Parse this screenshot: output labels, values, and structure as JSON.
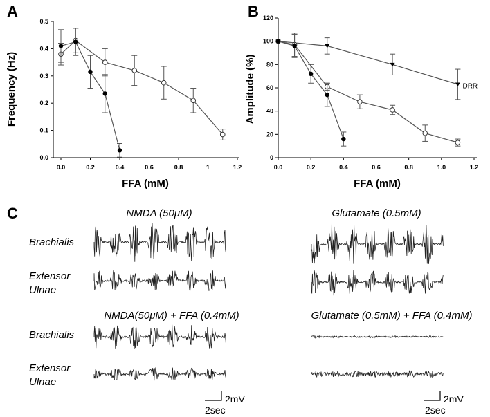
{
  "panel_labels": {
    "a": "A",
    "b": "B",
    "c": "C"
  },
  "chart_data": [
    {
      "panel": "A",
      "type": "line",
      "xlabel": "FFA (mM)",
      "ylabel": "Frequency (Hz)",
      "xlim": [
        0,
        1.2
      ],
      "ylim": [
        0,
        0.5
      ],
      "xticks": [
        0,
        0.2,
        0.4,
        0.6,
        0.8,
        1,
        1.2
      ],
      "xticklabels": [
        "0.0",
        "0.2",
        "0.4",
        "0.6",
        "0.8",
        "1",
        "1.2"
      ],
      "yticks": [
        0,
        0.1,
        0.2,
        0.3,
        0.4,
        0.5
      ],
      "yticklabels": [
        "0.0",
        "0.1",
        "0.2",
        "0.3",
        "0.4",
        "0.5"
      ],
      "series": [
        {
          "name": "open",
          "marker": "open-circle",
          "x": [
            0,
            0.1,
            0.3,
            0.5,
            0.7,
            0.9,
            1.1
          ],
          "y": [
            0.38,
            0.43,
            0.35,
            0.32,
            0.275,
            0.21,
            0.085
          ],
          "err": [
            0.04,
            0.045,
            0.05,
            0.055,
            0.06,
            0.045,
            0.02
          ]
        },
        {
          "name": "filled",
          "marker": "filled-circle",
          "x": [
            0,
            0.1,
            0.2,
            0.3,
            0.4
          ],
          "y": [
            0.41,
            0.425,
            0.315,
            0.235,
            0.027
          ],
          "err": [
            0.06,
            0.05,
            0.06,
            0.07,
            0.025
          ]
        }
      ]
    },
    {
      "panel": "B",
      "type": "line",
      "xlabel": "FFA (mM)",
      "ylabel": "Amplitude (%)",
      "xlim": [
        0,
        1.2
      ],
      "ylim": [
        0,
        120
      ],
      "xticks": [
        0,
        0.2,
        0.4,
        0.6,
        0.8,
        1,
        1.2
      ],
      "xticklabels": [
        "0.0",
        "0.2",
        "0.4",
        "0.6",
        "0.8",
        "1.0",
        "1.2"
      ],
      "yticks": [
        0,
        20,
        40,
        60,
        80,
        100,
        120
      ],
      "yticklabels": [
        "0",
        "20",
        "40",
        "60",
        "80",
        "100",
        "120"
      ],
      "annotation": {
        "text": "DRR",
        "x": 1.13,
        "y": 62
      },
      "series": [
        {
          "name": "DRR",
          "marker": "filled-triangle",
          "x": [
            0,
            0.3,
            0.7,
            1.1
          ],
          "y": [
            100,
            96,
            80,
            63
          ],
          "err": [
            0,
            7,
            9,
            13
          ]
        },
        {
          "name": "open",
          "marker": "open-circle",
          "x": [
            0,
            0.1,
            0.3,
            0.5,
            0.7,
            0.9,
            1.1
          ],
          "y": [
            100,
            97,
            61,
            48,
            41,
            21,
            13
          ],
          "err": [
            0,
            10,
            3,
            6,
            4,
            7,
            3
          ]
        },
        {
          "name": "filled",
          "marker": "filled-circle",
          "x": [
            0,
            0.1,
            0.2,
            0.3,
            0.4
          ],
          "y": [
            100,
            96,
            72,
            54,
            16
          ],
          "err": [
            0,
            10,
            8,
            10,
            6
          ]
        }
      ]
    }
  ],
  "panel_c": {
    "conditions": {
      "nmda": "NMDA (50μM)",
      "glutamate": "Glutamate (0.5mM)",
      "nmda_ffa": "NMDA(50μM) + FFA (0.4mM)",
      "glutamate_ffa": "Glutamate (0.5mM) + FFA (0.4mM)"
    },
    "muscles": {
      "brachialis": "Brachialis",
      "extensor_1": "Extensor",
      "extensor_2": "Ulnae"
    },
    "scale": {
      "voltage": "2mV",
      "time": "2sec"
    }
  }
}
